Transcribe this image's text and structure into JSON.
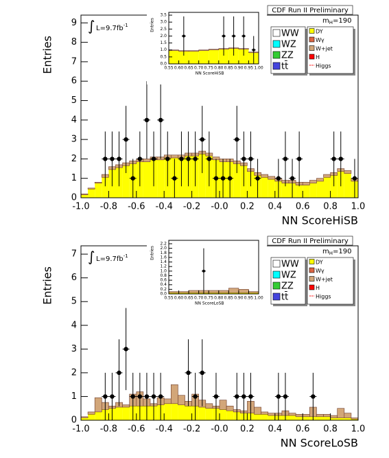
{
  "chart_data": [
    {
      "type": "histogram",
      "title": "CDF Run II Preliminary",
      "x_label": "NN ScoreHiSB",
      "y_label": "Entries",
      "lumi_prefix": "∫",
      "lumi": "L=9.7fb",
      "lumi_sup": "-1",
      "mass_label": "m",
      "mass_sub": "H",
      "mass_value": "=190",
      "bins": [
        -1.0,
        -0.95,
        -0.9,
        -0.85,
        -0.8,
        -0.75,
        -0.7,
        -0.65,
        -0.6,
        -0.55,
        -0.5,
        -0.45,
        -0.4,
        -0.35,
        -0.3,
        -0.25,
        -0.2,
        -0.15,
        -0.1,
        -0.05,
        0.0,
        0.05,
        0.1,
        0.15,
        0.2,
        0.25,
        0.3,
        0.35,
        0.4,
        0.45,
        0.5,
        0.55,
        0.6,
        0.65,
        0.7,
        0.75,
        0.8,
        0.85,
        0.9,
        0.95,
        1.0
      ],
      "series": [
        {
          "name": "DY",
          "color": "#ffff00",
          "values": [
            0.15,
            0.45,
            0.75,
            1.05,
            1.45,
            1.55,
            1.65,
            1.75,
            1.85,
            1.85,
            1.95,
            1.95,
            2.05,
            2.05,
            2.05,
            2.15,
            2.15,
            2.25,
            2.15,
            1.95,
            1.85,
            1.85,
            1.75,
            1.65,
            1.35,
            1.15,
            1.05,
            0.95,
            0.85,
            0.75,
            0.75,
            0.65,
            0.65,
            0.75,
            0.85,
            1.05,
            1.15,
            1.35,
            1.25,
            0.85
          ]
        },
        {
          "name": "W+jet",
          "color": "#d2a679",
          "values": [
            0.05,
            0.05,
            0.05,
            0.15,
            0.15,
            0.15,
            0.15,
            0.15,
            0.15,
            0.15,
            0.15,
            0.15,
            0.15,
            0.15,
            0.15,
            0.15,
            0.15,
            0.15,
            0.15,
            0.15,
            0.15,
            0.15,
            0.15,
            0.15,
            0.15,
            0.15,
            0.15,
            0.15,
            0.15,
            0.15,
            0.15,
            0.15,
            0.15,
            0.15,
            0.15,
            0.15,
            0.15,
            0.15,
            0.15,
            0.15
          ]
        }
      ],
      "data_points": {
        "x": [
          -0.825,
          -0.775,
          -0.725,
          -0.675,
          -0.625,
          -0.575,
          -0.525,
          -0.475,
          -0.425,
          -0.375,
          -0.325,
          -0.275,
          -0.225,
          -0.175,
          -0.125,
          -0.075,
          -0.025,
          0.025,
          0.075,
          0.125,
          0.175,
          0.225,
          0.275,
          0.425,
          0.475,
          0.525,
          0.575,
          0.825,
          0.875,
          0.975
        ],
        "values": [
          2,
          2,
          2,
          3,
          1,
          2,
          4,
          2,
          4,
          2,
          1,
          2,
          2,
          2,
          3,
          2,
          1,
          1,
          1,
          3,
          2,
          2,
          1,
          1,
          2,
          1,
          2,
          2,
          2,
          1
        ],
        "errors": [
          1.41,
          1.41,
          1.41,
          1.73,
          1,
          1.41,
          2,
          1.41,
          2,
          1.41,
          1,
          1.41,
          1.41,
          1.41,
          1.73,
          1.41,
          1,
          1,
          1,
          1.73,
          1.41,
          1.41,
          1,
          1,
          1.41,
          1,
          1.41,
          1.41,
          1.41,
          1
        ]
      },
      "xlim": [
        -1.0,
        1.0
      ],
      "ylim": [
        0,
        9.4
      ],
      "xticks": [
        {
          "value": -1,
          "label": "-1.0"
        },
        -0.8,
        -0.6,
        -0.4,
        -0.2,
        {
          "value": 0,
          "label": "-0.0"
        },
        0.2,
        0.4,
        0.6,
        0.8,
        {
          "value": 1,
          "label": "1.0"
        }
      ],
      "yticks": [
        0,
        1,
        2,
        3,
        4,
        5,
        6,
        7,
        8,
        9
      ],
      "legend": [
        {
          "name": "WW",
          "color": "#ffffff"
        },
        {
          "name": "WZ",
          "color": "#00ffff"
        },
        {
          "name": "ZZ",
          "color": "#33cc33"
        },
        {
          "name": "tt̄",
          "color": "#4444dd"
        },
        {
          "name": "DY",
          "color": "#ffff00"
        },
        {
          "name": "Wγ",
          "color": "#dd6644"
        },
        {
          "name": "W+jet",
          "color": "#d2a679"
        },
        {
          "name": "H",
          "color": "#ff0000"
        },
        {
          "name": "Higgs",
          "color": "#ff0000",
          "style": "line"
        }
      ],
      "inset": {
        "x_label": "NN ScoreHiSB",
        "y_label": "Entries",
        "bins": [
          0.55,
          0.6,
          0.65,
          0.7,
          0.75,
          0.8,
          0.85,
          0.9,
          0.95,
          1.0
        ],
        "series": [
          {
            "name": "DY",
            "color": "#ffff00",
            "values": [
              0.95,
              0.9,
              0.9,
              0.95,
              1.0,
              1.05,
              1.1,
              1.05,
              0.8
            ]
          },
          {
            "name": "W+jet",
            "color": "#d2a679",
            "values": [
              0.05,
              0.05,
              0.05,
              0.05,
              0.05,
              0.05,
              0.05,
              0.05,
              0.05
            ]
          }
        ],
        "data_points": {
          "x": [
            0.625,
            0.825,
            0.875,
            0.925,
            0.975
          ],
          "values": [
            2,
            2,
            2,
            2,
            1
          ],
          "errors": [
            1.41,
            1.41,
            1.41,
            1.41,
            1
          ]
        },
        "xlim": [
          0.55,
          1.0
        ],
        "ylim": [
          0,
          3.7
        ],
        "xticks": [
          0.55,
          {
            "value": 0.6,
            "label": "0.60"
          },
          0.65,
          {
            "value": 0.7,
            "label": "0.70"
          },
          0.75,
          {
            "value": 0.8,
            "label": "0.80"
          },
          0.85,
          {
            "value": 0.9,
            "label": "0.90"
          },
          0.95,
          {
            "value": 1,
            "label": "1.00"
          }
        ],
        "yticks": [
          {
            "value": 0,
            "label": "0.0"
          },
          0.5,
          {
            "value": 1,
            "label": "1.0"
          },
          1.5,
          {
            "value": 2,
            "label": "2.0"
          },
          2.5,
          {
            "value": 3,
            "label": "3.0"
          },
          3.5
        ]
      }
    },
    {
      "type": "histogram",
      "title": "CDF Run II Preliminary",
      "x_label": "NN ScoreLoSB",
      "y_label": "Entries",
      "lumi_prefix": "∫",
      "lumi": "L=9.7fb",
      "lumi_sup": "-1",
      "mass_label": "m",
      "mass_sub": "H",
      "mass_value": "=190",
      "bins": [
        -1.0,
        -0.95,
        -0.9,
        -0.85,
        -0.8,
        -0.75,
        -0.7,
        -0.65,
        -0.6,
        -0.55,
        -0.5,
        -0.45,
        -0.4,
        -0.35,
        -0.3,
        -0.25,
        -0.2,
        -0.15,
        -0.1,
        -0.05,
        0.0,
        0.05,
        0.1,
        0.15,
        0.2,
        0.25,
        0.3,
        0.35,
        0.4,
        0.45,
        0.5,
        0.55,
        0.6,
        0.65,
        0.7,
        0.75,
        0.8,
        0.85,
        0.9,
        0.95,
        1.0
      ],
      "series": [
        {
          "name": "DY",
          "color": "#ffff00",
          "values": [
            0.1,
            0.25,
            0.35,
            0.45,
            0.5,
            0.55,
            0.55,
            0.6,
            0.6,
            0.6,
            0.6,
            0.65,
            0.7,
            0.7,
            0.65,
            0.6,
            0.6,
            0.55,
            0.5,
            0.5,
            0.45,
            0.4,
            0.35,
            0.3,
            0.3,
            0.25,
            0.25,
            0.2,
            0.2,
            0.2,
            0.2,
            0.15,
            0.15,
            0.15,
            0.15,
            0.15,
            0.1,
            0.1,
            0.1,
            0.05
          ]
        },
        {
          "name": "W+jet",
          "color": "#d2a679",
          "values": [
            0.05,
            0.1,
            0.6,
            0.3,
            0.1,
            0.2,
            0.1,
            0.5,
            0.6,
            0.3,
            0.1,
            0.3,
            0.2,
            0.8,
            0.4,
            0.2,
            0.5,
            0.3,
            0.2,
            0.1,
            0.4,
            0.2,
            0.1,
            0.1,
            0.5,
            0.3,
            0.1,
            0.1,
            0.1,
            0.2,
            0.1,
            0.1,
            0.1,
            0.4,
            0.1,
            0.1,
            0.1,
            0.4,
            0.2,
            0.05
          ]
        }
      ],
      "data_points": {
        "x": [
          -0.825,
          -0.775,
          -0.725,
          -0.675,
          -0.625,
          -0.575,
          -0.525,
          -0.475,
          -0.425,
          -0.225,
          -0.175,
          -0.125,
          -0.025,
          0.125,
          0.175,
          0.225,
          0.425,
          0.475,
          0.675
        ],
        "values": [
          1,
          1,
          2,
          3,
          1,
          1,
          1,
          1,
          1,
          2,
          1,
          2,
          1,
          1,
          1,
          1,
          1,
          1,
          1
        ],
        "errors": [
          1,
          1,
          1.41,
          1.73,
          1,
          1,
          1,
          1,
          1,
          1.41,
          1,
          1.41,
          1,
          1,
          1,
          1,
          1,
          1,
          1
        ]
      },
      "xlim": [
        -1.0,
        1.0
      ],
      "ylim": [
        0,
        7.35
      ],
      "xticks": [
        {
          "value": -1,
          "label": "-1.0"
        },
        -0.8,
        -0.6,
        -0.4,
        -0.2,
        {
          "value": 0,
          "label": "-0.0"
        },
        0.2,
        0.4,
        0.6,
        0.8,
        {
          "value": 1,
          "label": "1.0"
        }
      ],
      "yticks": [
        0,
        1,
        2,
        3,
        4,
        5,
        6,
        7
      ],
      "legend": [
        {
          "name": "WW",
          "color": "#ffffff"
        },
        {
          "name": "WZ",
          "color": "#00ffff"
        },
        {
          "name": "ZZ",
          "color": "#33cc33"
        },
        {
          "name": "tt̄",
          "color": "#4444dd"
        },
        {
          "name": "DY",
          "color": "#ffff00"
        },
        {
          "name": "Wγ",
          "color": "#dd6644"
        },
        {
          "name": "W+jet",
          "color": "#d2a679"
        },
        {
          "name": "H",
          "color": "#ff0000"
        },
        {
          "name": "Higgs",
          "color": "#ff0000",
          "style": "line"
        }
      ],
      "inset": {
        "x_label": "NN ScoreLoSB",
        "y_label": "Entries",
        "bins": [
          0.55,
          0.6,
          0.65,
          0.7,
          0.75,
          0.8,
          0.85,
          0.9,
          0.95,
          1.0
        ],
        "series": [
          {
            "name": "DY",
            "color": "#ffff00",
            "values": [
              0.05,
              0.05,
              0.05,
              0.05,
              0.05,
              0.05,
              0.05,
              0.05,
              0.05
            ]
          },
          {
            "name": "W+jet",
            "color": "#d2a679",
            "values": [
              0.05,
              0.05,
              0.1,
              0.1,
              0.1,
              0.1,
              0.2,
              0.15,
              0.05
            ]
          }
        ],
        "data_points": {
          "x": [
            0.725
          ],
          "values": [
            1
          ],
          "errors": [
            1
          ]
        },
        "xlim": [
          0.55,
          1.0
        ],
        "ylim": [
          0,
          2.35
        ],
        "xticks": [
          0.55,
          {
            "value": 0.6,
            "label": "0.60"
          },
          0.65,
          {
            "value": 0.7,
            "label": "0.70"
          },
          0.75,
          {
            "value": 0.8,
            "label": "0.80"
          },
          0.85,
          {
            "value": 0.9,
            "label": "0.90"
          },
          0.95,
          {
            "value": 1,
            "label": "1.00"
          }
        ],
        "yticks": [
          {
            "value": 0,
            "label": "0.0"
          },
          0.2,
          0.4,
          0.6,
          0.8,
          {
            "value": 1,
            "label": "1.0"
          },
          1.2,
          1.4,
          1.6,
          1.8,
          {
            "value": 2,
            "label": "2.0"
          },
          2.2
        ]
      }
    }
  ]
}
